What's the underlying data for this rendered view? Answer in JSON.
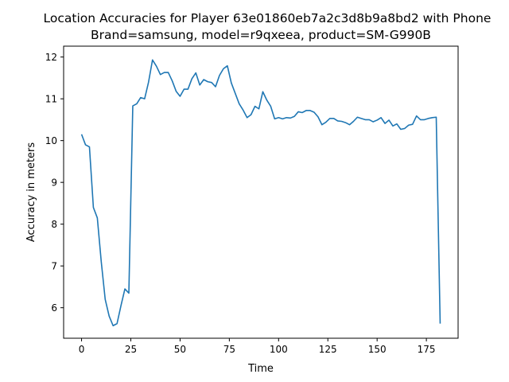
{
  "chart_data": {
    "type": "line",
    "title_line1": "Location Accuracies for Player 63e01860eb7a2c3d8b9a8bd2 with Phone",
    "title_line2": "Brand=samsung, model=r9qxeea, product=SM-G990B",
    "xlabel": "Time",
    "ylabel": "Accuracy in meters",
    "xlim": [
      -9.1,
      191.1
    ],
    "ylim": [
      5.27,
      12.26
    ],
    "xticks": [
      0,
      25,
      50,
      75,
      100,
      125,
      150,
      175
    ],
    "yticks": [
      6,
      7,
      8,
      9,
      10,
      11,
      12
    ],
    "grid": false,
    "line_color": "#1f77b4",
    "series": [
      {
        "x": [
          0,
          2,
          4,
          6,
          8,
          10,
          12,
          14,
          16,
          18,
          20,
          22,
          24,
          26,
          28,
          30,
          32,
          34,
          36,
          38,
          40,
          42,
          44,
          46,
          48,
          50,
          52,
          54,
          56,
          58,
          60,
          62,
          64,
          66,
          68,
          70,
          72,
          74,
          76,
          78,
          80,
          82,
          84,
          86,
          88,
          90,
          92,
          94,
          96,
          98,
          100,
          102,
          104,
          106,
          108,
          110,
          112,
          114,
          116,
          118,
          120,
          122,
          124,
          126,
          128,
          130,
          132,
          134,
          136,
          138,
          140,
          142,
          144,
          146,
          148,
          150,
          152,
          154,
          156,
          158,
          160,
          162,
          164,
          166,
          168,
          170,
          172,
          174,
          176,
          178,
          180,
          182
        ],
        "y": [
          10.15,
          9.9,
          9.85,
          8.4,
          8.15,
          7.1,
          6.2,
          5.8,
          5.57,
          5.62,
          6.05,
          6.45,
          6.35,
          10.83,
          10.88,
          11.03,
          11.0,
          11.4,
          11.93,
          11.78,
          11.58,
          11.63,
          11.63,
          11.43,
          11.18,
          11.06,
          11.23,
          11.23,
          11.48,
          11.62,
          11.33,
          11.46,
          11.41,
          11.39,
          11.29,
          11.56,
          11.72,
          11.79,
          11.38,
          11.13,
          10.88,
          10.73,
          10.55,
          10.62,
          10.82,
          10.76,
          11.17,
          10.97,
          10.82,
          10.52,
          10.55,
          10.52,
          10.55,
          10.54,
          10.58,
          10.69,
          10.67,
          10.72,
          10.72,
          10.68,
          10.57,
          10.38,
          10.44,
          10.53,
          10.53,
          10.47,
          10.46,
          10.43,
          10.38,
          10.46,
          10.56,
          10.53,
          10.5,
          10.5,
          10.45,
          10.49,
          10.55,
          10.41,
          10.49,
          10.35,
          10.4,
          10.27,
          10.29,
          10.37,
          10.39,
          10.59,
          10.5,
          10.5,
          10.53,
          10.55,
          10.56,
          5.62
        ]
      }
    ]
  }
}
